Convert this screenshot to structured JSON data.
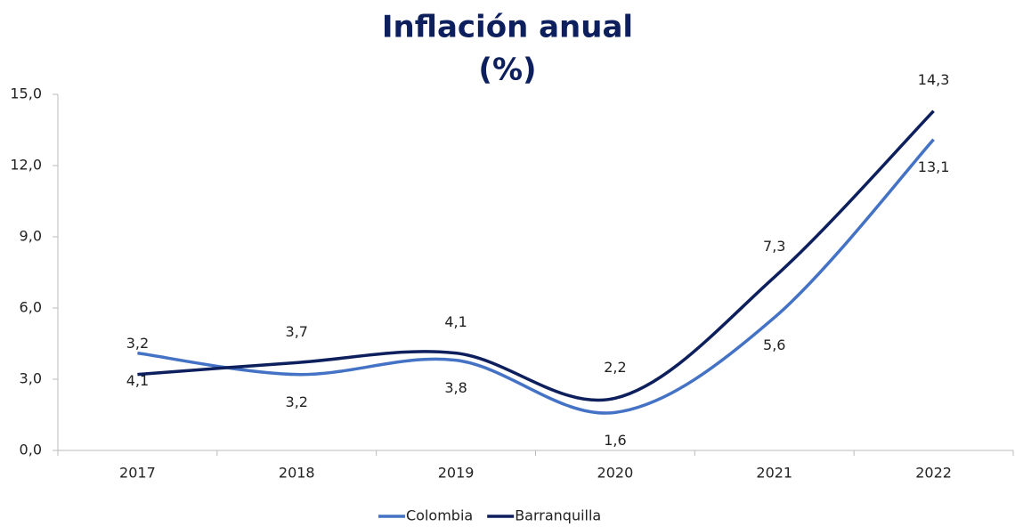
{
  "chart_data": {
    "type": "line",
    "title": "Inflación anual",
    "subtitle": "(%)",
    "categories": [
      "2017",
      "2018",
      "2019",
      "2020",
      "2021",
      "2022"
    ],
    "series": [
      {
        "name": "Colombia",
        "color": "#4472c4",
        "values": [
          4.1,
          3.2,
          3.8,
          1.6,
          5.6,
          13.1
        ],
        "value_labels": [
          "4,1",
          "3,2",
          "3,8",
          "1,6",
          "5,6",
          "13,1"
        ]
      },
      {
        "name": "Barranquilla",
        "color": "#0d1f5c",
        "values": [
          3.2,
          3.7,
          4.1,
          2.2,
          7.3,
          14.3
        ],
        "value_labels": [
          "3,2",
          "3,7",
          "4,1",
          "2,2",
          "7,3",
          "14,3"
        ]
      }
    ],
    "ylim": [
      0,
      15
    ],
    "yticks": [
      {
        "value": 0,
        "label": "0,0"
      },
      {
        "value": 3,
        "label": "3,0"
      },
      {
        "value": 6,
        "label": "6,0"
      },
      {
        "value": 9,
        "label": "9,0"
      },
      {
        "value": 12,
        "label": "12,0"
      },
      {
        "value": 15,
        "label": "15,0"
      }
    ],
    "legend": "bottom"
  }
}
